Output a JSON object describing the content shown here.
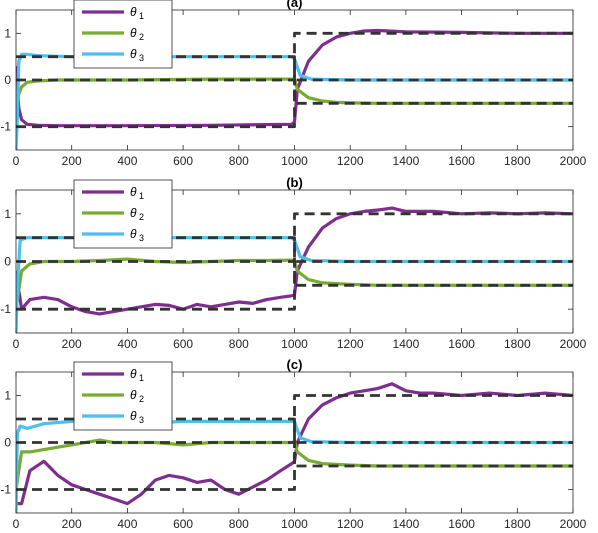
{
  "colors": {
    "theta1": "#7E2F8E",
    "theta2": "#77AC30",
    "theta3": "#4DBEEE",
    "reference": "#333333"
  },
  "chart_data": [
    {
      "type": "line",
      "title": "(a)",
      "xlabel": "",
      "ylabel": "",
      "xlim": [
        0,
        2000
      ],
      "ylim": [
        -1.5,
        1.5
      ],
      "xticks": [
        "0",
        "200",
        "400",
        "600",
        "800",
        "1000",
        "1200",
        "1400",
        "1600",
        "1800",
        "2000"
      ],
      "yticks": [
        "-1",
        "0",
        "1"
      ],
      "grid": false,
      "legend": "top-left",
      "series": [
        {
          "name": "θ1",
          "color": "#7E2F8E",
          "x": [
            0,
            10,
            20,
            40,
            80,
            150,
            400,
            700,
            990,
            1000,
            1010,
            1050,
            1100,
            1150,
            1200,
            1250,
            1300,
            1400,
            1600,
            1800,
            2000
          ],
          "y": [
            0.3,
            -0.6,
            -0.85,
            -0.95,
            -0.97,
            -0.98,
            -0.98,
            -0.97,
            -0.95,
            -0.9,
            -0.2,
            0.4,
            0.75,
            0.92,
            1.0,
            1.05,
            1.06,
            1.03,
            1.02,
            1.0,
            1.0
          ]
        },
        {
          "name": "θ2",
          "color": "#77AC30",
          "x": [
            0,
            10,
            20,
            40,
            80,
            150,
            400,
            700,
            990,
            1000,
            1010,
            1050,
            1100,
            1150,
            1200,
            1300,
            1500,
            2000
          ],
          "y": [
            -0.6,
            -0.3,
            -0.15,
            -0.05,
            -0.02,
            0,
            0,
            0.02,
            0.02,
            0.02,
            -0.2,
            -0.38,
            -0.45,
            -0.48,
            -0.49,
            -0.5,
            -0.5,
            -0.5
          ]
        },
        {
          "name": "θ3",
          "color": "#4DBEEE",
          "x": [
            0,
            5,
            10,
            20,
            40,
            80,
            200,
            990,
            1000,
            1020,
            1060,
            1200,
            2000
          ],
          "y": [
            -1.5,
            -0.8,
            0.4,
            0.55,
            0.55,
            0.52,
            0.5,
            0.5,
            0.45,
            0.1,
            0.02,
            0,
            0
          ]
        },
        {
          "name": "",
          "color": "#333333",
          "dashed": true,
          "x": [
            0,
            1000,
            1000,
            2000
          ],
          "y": [
            0.5,
            0.5,
            0,
            0
          ]
        },
        {
          "name": "",
          "color": "#333333",
          "dashed": true,
          "x": [
            0,
            1000,
            1000,
            2000
          ],
          "y": [
            0,
            0,
            -0.5,
            -0.5
          ]
        },
        {
          "name": "",
          "color": "#333333",
          "dashed": true,
          "x": [
            0,
            1000,
            1000,
            2000
          ],
          "y": [
            -1,
            -1,
            1,
            1
          ]
        }
      ]
    },
    {
      "type": "line",
      "title": "(b)",
      "xlabel": "",
      "ylabel": "",
      "xlim": [
        0,
        2000
      ],
      "ylim": [
        -1.5,
        1.5
      ],
      "xticks": [
        "0",
        "200",
        "400",
        "600",
        "800",
        "1000",
        "1200",
        "1400",
        "1600",
        "1800",
        "2000"
      ],
      "yticks": [
        "-1",
        "0",
        "1"
      ],
      "grid": false,
      "legend": "top-left",
      "series": [
        {
          "name": "θ1",
          "color": "#7E2F8E",
          "x": [
            0,
            20,
            50,
            100,
            150,
            200,
            250,
            300,
            350,
            400,
            450,
            500,
            550,
            600,
            650,
            700,
            750,
            800,
            850,
            900,
            950,
            990,
            1000,
            1010,
            1050,
            1100,
            1150,
            1200,
            1250,
            1300,
            1350,
            1400,
            1500,
            1600,
            1700,
            1800,
            1900,
            2000
          ],
          "y": [
            -0.2,
            -1.0,
            -0.8,
            -0.75,
            -0.8,
            -0.95,
            -1.05,
            -1.1,
            -1.05,
            -1.0,
            -0.95,
            -0.9,
            -0.92,
            -1.0,
            -0.9,
            -0.95,
            -0.9,
            -0.85,
            -0.88,
            -0.8,
            -0.75,
            -0.72,
            -0.7,
            -0.2,
            0.3,
            0.7,
            0.9,
            1.0,
            1.05,
            1.08,
            1.12,
            1.05,
            1.05,
            1.0,
            1.02,
            1.0,
            1.02,
            1.0
          ]
        },
        {
          "name": "θ2",
          "color": "#77AC30",
          "x": [
            0,
            20,
            50,
            100,
            200,
            300,
            400,
            500,
            600,
            700,
            800,
            900,
            990,
            1000,
            1010,
            1050,
            1100,
            1200,
            1300,
            1500,
            2000
          ],
          "y": [
            -1.0,
            -0.2,
            -0.05,
            0,
            0,
            0.02,
            0.05,
            0,
            -0.02,
            0,
            0.02,
            0.02,
            0.03,
            0.02,
            -0.2,
            -0.38,
            -0.45,
            -0.48,
            -0.5,
            -0.5,
            -0.5
          ]
        },
        {
          "name": "θ3",
          "color": "#4DBEEE",
          "x": [
            0,
            5,
            15,
            40,
            100,
            300,
            600,
            900,
            990,
            1000,
            1020,
            1060,
            1200,
            2000
          ],
          "y": [
            -1.5,
            -0.5,
            0.45,
            0.5,
            0.5,
            0.5,
            0.5,
            0.5,
            0.5,
            0.45,
            0.1,
            0.02,
            0,
            0
          ]
        },
        {
          "name": "",
          "color": "#333333",
          "dashed": true,
          "x": [
            0,
            1000,
            1000,
            2000
          ],
          "y": [
            0.5,
            0.5,
            0,
            0
          ]
        },
        {
          "name": "",
          "color": "#333333",
          "dashed": true,
          "x": [
            0,
            1000,
            1000,
            2000
          ],
          "y": [
            0,
            0,
            -0.5,
            -0.5
          ]
        },
        {
          "name": "",
          "color": "#333333",
          "dashed": true,
          "x": [
            0,
            1000,
            1000,
            2000
          ],
          "y": [
            -1,
            -1,
            1,
            1
          ]
        }
      ]
    },
    {
      "type": "line",
      "title": "(c)",
      "xlabel": "",
      "ylabel": "",
      "xlim": [
        0,
        2000
      ],
      "ylim": [
        -1.5,
        1.5
      ],
      "xticks": [
        "0",
        "200",
        "400",
        "600",
        "800",
        "1000",
        "1200",
        "1400",
        "1600",
        "1800",
        "2000"
      ],
      "yticks": [
        "-1",
        "0",
        "1"
      ],
      "grid": false,
      "legend": "top-left",
      "series": [
        {
          "name": "θ1",
          "color": "#7E2F8E",
          "x": [
            0,
            20,
            50,
            100,
            150,
            200,
            250,
            300,
            350,
            400,
            450,
            500,
            550,
            600,
            650,
            700,
            750,
            800,
            850,
            900,
            950,
            990,
            1000,
            1010,
            1050,
            1100,
            1150,
            1200,
            1250,
            1300,
            1350,
            1400,
            1450,
            1500,
            1600,
            1700,
            1800,
            1900,
            2000
          ],
          "y": [
            -1.3,
            -1.3,
            -0.6,
            -0.4,
            -0.7,
            -0.9,
            -1.0,
            -1.1,
            -1.2,
            -1.3,
            -1.1,
            -0.8,
            -0.7,
            -0.75,
            -0.85,
            -0.8,
            -1.0,
            -1.1,
            -0.95,
            -0.8,
            -0.6,
            -0.45,
            -0.4,
            0,
            0.5,
            0.8,
            0.95,
            1.05,
            1.1,
            1.15,
            1.25,
            1.1,
            1.05,
            1.05,
            1.0,
            1.05,
            1.0,
            1.05,
            1.0
          ]
        },
        {
          "name": "θ2",
          "color": "#77AC30",
          "x": [
            0,
            20,
            50,
            100,
            150,
            200,
            250,
            300,
            350,
            400,
            500,
            600,
            700,
            800,
            900,
            990,
            1000,
            1010,
            1050,
            1100,
            1200,
            1300,
            1500,
            2000
          ],
          "y": [
            -1.0,
            -0.2,
            -0.2,
            -0.15,
            -0.1,
            -0.05,
            0,
            0.05,
            0,
            0,
            0,
            -0.05,
            0,
            0,
            0,
            0,
            0.02,
            -0.2,
            -0.38,
            -0.45,
            -0.48,
            -0.5,
            -0.5,
            -0.5
          ]
        },
        {
          "name": "θ3",
          "color": "#4DBEEE",
          "x": [
            0,
            5,
            15,
            40,
            100,
            200,
            300,
            400,
            500,
            600,
            700,
            800,
            900,
            990,
            1000,
            1020,
            1060,
            1200,
            2000
          ],
          "y": [
            -1.5,
            0.2,
            0.35,
            0.3,
            0.4,
            0.45,
            0.5,
            0.48,
            0.42,
            0.45,
            0.45,
            0.45,
            0.45,
            0.45,
            0.45,
            0.1,
            0.02,
            0,
            0
          ]
        },
        {
          "name": "",
          "color": "#333333",
          "dashed": true,
          "x": [
            0,
            1000,
            1000,
            2000
          ],
          "y": [
            0.5,
            0.5,
            0,
            0
          ]
        },
        {
          "name": "",
          "color": "#333333",
          "dashed": true,
          "x": [
            0,
            1000,
            1000,
            2000
          ],
          "y": [
            0,
            0,
            -0.5,
            -0.5
          ]
        },
        {
          "name": "",
          "color": "#333333",
          "dashed": true,
          "x": [
            0,
            1000,
            1000,
            2000
          ],
          "y": [
            -1,
            -1,
            1,
            1
          ]
        }
      ]
    }
  ]
}
